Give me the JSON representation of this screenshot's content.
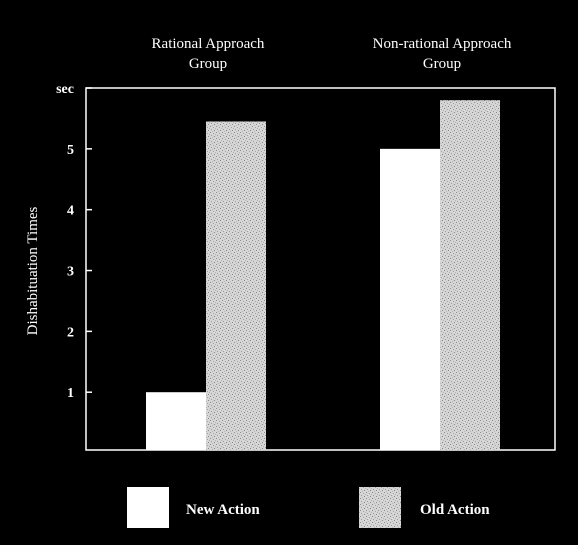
{
  "chart_data": {
    "type": "bar",
    "categories": [
      "Rational Approach\nGroup",
      "Non-rational Approach\nGroup"
    ],
    "series": [
      {
        "name": "New Action",
        "values": [
          1.0,
          5.0
        ],
        "color": "#ffffff",
        "pattern": "solid"
      },
      {
        "name": "Old Action",
        "values": [
          5.45,
          5.8
        ],
        "color": "#d9d9d9",
        "pattern": "stipple"
      }
    ],
    "ylabel": "Dishabituation Times",
    "y_ticks": [
      {
        "value": 1,
        "label": "1"
      },
      {
        "value": 2,
        "label": "2"
      },
      {
        "value": 3,
        "label": "3"
      },
      {
        "value": 4,
        "label": "4"
      },
      {
        "value": 5,
        "label": "5"
      },
      {
        "value": 6,
        "label": "sec"
      }
    ],
    "ylim": [
      0.05,
      6
    ],
    "grid": false,
    "legend": "bottom",
    "background": "#000000",
    "axis_color": "#ffffff"
  }
}
